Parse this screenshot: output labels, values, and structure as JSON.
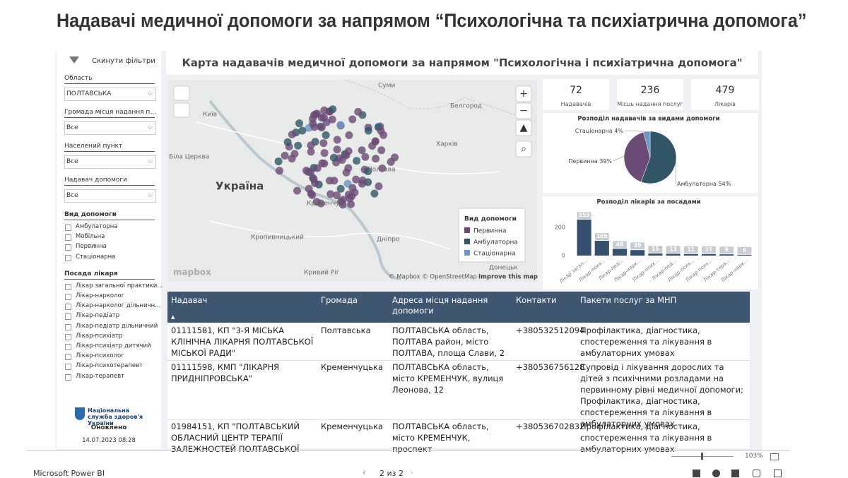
{
  "title": "Надавачі медичної допомоги за напрямом “Психологічна та психіатрична допомога”",
  "sidebar": {
    "reset": "Скинути фільтри",
    "dropdowns": [
      {
        "label": "Область",
        "value": "ПОЛТАВСЬКА"
      },
      {
        "label": "Громада місця надання п...",
        "value": "Все"
      },
      {
        "label": "Населений пункт",
        "value": "Все"
      },
      {
        "label": "Надавач допомоги",
        "value": "Все"
      }
    ],
    "checklists": [
      {
        "label": "Вид допомоги",
        "options": [
          "Амбулаторна",
          "Мобільна",
          "Первинна",
          "Стаціонарна"
        ]
      },
      {
        "label": "Посада лікаря",
        "options": [
          "Лікар загальної практики...",
          "Лікар-нарколог",
          "Лікар-нарколог дільничн...",
          "Лікар-педіатр",
          "Лікар-педіатр дільничний",
          "Лікар-психіатр",
          "Лікар-психіатр дитячий",
          "Лікар-психолог",
          "Лікар-психотерапевт",
          "Лікар-терапевт"
        ]
      }
    ],
    "org": "Національна служба здоров'я України",
    "updated_label": "Оновлено",
    "updated": "14.07.2023 08:28"
  },
  "report_title": "Карта надавачів медичної допомоги за напрямом \"Психологічна і психіатрична допомога\"",
  "map": {
    "places": [
      "Суми",
      "Київ",
      "Белгород",
      "Харків",
      "Біла Церква",
      "Україна",
      "Полтава",
      "Кременчук",
      "Кропивницький",
      "Дніпро",
      "Кривий Ріг",
      "Донецьк"
    ],
    "legend_title": "Вид допомоги",
    "legend": [
      {
        "name": "Первинна",
        "color": "#6b4a75"
      },
      {
        "name": "Амбулаторна",
        "color": "#2f5566"
      },
      {
        "name": "Стаціонарна",
        "color": "#6a98c4"
      }
    ],
    "logo": "mapbox",
    "attribution": "© Mapbox © OpenStreetMap",
    "improve": "Improve this map"
  },
  "kpis": [
    {
      "value": 72,
      "label": "Надавачів"
    },
    {
      "value": 236,
      "label": "Місць надання послуг"
    },
    {
      "value": 479,
      "label": "Лікарів"
    }
  ],
  "chart_data": [
    {
      "type": "pie",
      "title": "Розподіл надавачів за видами допомоги",
      "categories": [
        "Амбулаторна",
        "Первинна",
        "Стаціонарна"
      ],
      "values": [
        54,
        39,
        4
      ],
      "value_labels": [
        "54%",
        "39%",
        "4%"
      ],
      "colors": [
        "#2f5566",
        "#6b4a75",
        "#6a98c4"
      ]
    },
    {
      "type": "bar",
      "title": "Розподіл лікарів за посадами",
      "categories": [
        "Лікар загал...",
        "Лікар-псих...",
        "Лікар-пед...",
        "Лікар-нарк...",
        "Лікар-псих...",
        "Лікар-пед...",
        "Лікар-псих...",
        "Лікар-псих...",
        "Лікар-тера...",
        "Лікар-нарк..."
      ],
      "values": [
        255,
        105,
        48,
        39,
        15,
        13,
        11,
        11,
        9,
        6
      ],
      "color": "#34506e",
      "ylim": [
        0,
        300
      ],
      "yticks": [
        0,
        200
      ],
      "grid": false
    }
  ],
  "table": {
    "columns": [
      "Надавач",
      "Громада",
      "Адреса місця надання допомоги",
      "Контакти",
      "Пакети послуг за МНП"
    ],
    "rows": [
      [
        "01111581, КП \"3-Я МІСЬКА КЛІНІЧНА ЛІКАРНЯ ПОЛТАВСЬКОЇ МІСЬКОЇ РАДИ\"",
        "Полтавська",
        "ПОЛТАВСЬКА область, ПОЛТАВА район, місто ПОЛТАВА, площа Слави, 2",
        "+380532512094",
        "Профілактика, діагностика, спостереження та лікування в амбулаторних умовах"
      ],
      [
        "01111598, КМП \"ЛІКАРНЯ ПРИДНІПРОВСЬКА\"",
        "Кременчуцька",
        "ПОЛТАВСЬКА область, місто КРЕМЕНЧУК, вулиця Леонова, 12",
        "+380536756128",
        "Супровід і лікування дорослих та дітей з психічними розладами на первинному рівні медичної допомоги; Профілактика, діагностика, спостереження та лікування в амбулаторних умовах"
      ],
      [
        "01984151, КП \"ПОЛТАВСЬКИЙ ОБЛАСНИЙ ЦЕНТР ТЕРАПІЇ ЗАЛЕЖНОСТЕЙ ПОЛТАВСЬКОЇ",
        "Кременчуцька",
        "ПОЛТАВСЬКА область, місто КРЕМЕНЧУК, проспект",
        "+380536702832",
        "Профілактика, діагностика, спостереження та лікування в амбулаторних умовах"
      ]
    ]
  },
  "footer": {
    "brand": "Microsoft Power BI",
    "page": "2 из 2",
    "zoom": "103%"
  }
}
